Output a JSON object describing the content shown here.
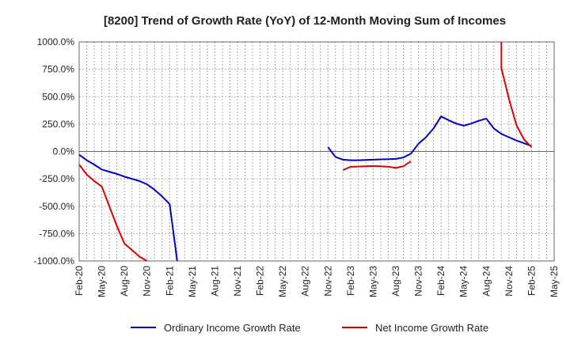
{
  "chart_data": {
    "type": "line",
    "title": "[8200]  Trend of Growth Rate (YoY) of 12-Month Moving Sum of Incomes",
    "xlabel": "",
    "ylabel": "",
    "ylim": [
      -1000,
      1000
    ],
    "yticks": [
      -1000,
      -750,
      -500,
      -250,
      0,
      250,
      500,
      750,
      1000
    ],
    "ytick_labels": [
      "-1000.0%",
      "-750.0%",
      "-500.0%",
      "-250.0%",
      "0.0%",
      "250.0%",
      "500.0%",
      "750.0%",
      "1000.0%"
    ],
    "xticks": [
      "Feb-20",
      "May-20",
      "Aug-20",
      "Nov-20",
      "Feb-21",
      "May-21",
      "Aug-21",
      "Nov-21",
      "Feb-22",
      "May-22",
      "Aug-22",
      "Nov-22",
      "Feb-23",
      "May-23",
      "Aug-23",
      "Nov-23",
      "Feb-24",
      "May-24",
      "Aug-24",
      "Nov-24",
      "Feb-25",
      "May-25"
    ],
    "grid": true,
    "legend_position": "bottom",
    "series": [
      {
        "name": "Ordinary Income Growth Rate",
        "color": "#0000cc",
        "points": [
          [
            "Feb-20",
            -30
          ],
          [
            "Mar-20",
            -80
          ],
          [
            "Apr-20",
            -120
          ],
          [
            "May-20",
            -165
          ],
          [
            "Jun-20",
            -185
          ],
          [
            "Jul-20",
            -205
          ],
          [
            "Aug-20",
            -230
          ],
          [
            "Sep-20",
            -250
          ],
          [
            "Oct-20",
            -270
          ],
          [
            "Nov-20",
            -300
          ],
          [
            "Dec-20",
            -350
          ],
          [
            "Jan-21",
            -410
          ],
          [
            "Feb-21",
            -480
          ],
          [
            "Mar-21",
            -1000
          ]
        ]
      },
      {
        "name": "Ordinary Income Growth Rate",
        "color": "#0000cc",
        "points": [
          [
            "Nov-22",
            40
          ],
          [
            "Dec-22",
            -50
          ],
          [
            "Jan-23",
            -75
          ],
          [
            "Feb-23",
            -80
          ],
          [
            "Mar-23",
            -80
          ],
          [
            "Apr-23",
            -78
          ],
          [
            "May-23",
            -75
          ],
          [
            "Jun-23",
            -72
          ],
          [
            "Jul-23",
            -70
          ],
          [
            "Aug-23",
            -68
          ],
          [
            "Sep-23",
            -55
          ],
          [
            "Oct-23",
            -20
          ],
          [
            "Nov-23",
            70
          ],
          [
            "Dec-23",
            130
          ],
          [
            "Jan-24",
            210
          ],
          [
            "Feb-24",
            320
          ],
          [
            "Mar-24",
            285
          ],
          [
            "Apr-24",
            255
          ],
          [
            "May-24",
            235
          ],
          [
            "Jun-24",
            255
          ],
          [
            "Jul-24",
            280
          ],
          [
            "Aug-24",
            300
          ],
          [
            "Sep-24",
            210
          ],
          [
            "Oct-24",
            160
          ],
          [
            "Nov-24",
            130
          ],
          [
            "Dec-24",
            100
          ],
          [
            "Jan-25",
            75
          ],
          [
            "Feb-25",
            50
          ]
        ]
      },
      {
        "name": "Net Income Growth Rate",
        "color": "#dd0000",
        "points": [
          [
            "Feb-20",
            -120
          ],
          [
            "Mar-20",
            -210
          ],
          [
            "Apr-20",
            -270
          ],
          [
            "May-20",
            -320
          ],
          [
            "Jun-20",
            -500
          ],
          [
            "Jul-20",
            -680
          ],
          [
            "Aug-20",
            -840
          ],
          [
            "Sep-20",
            -900
          ],
          [
            "Oct-20",
            -960
          ],
          [
            "Nov-20",
            -1000
          ]
        ]
      },
      {
        "name": "Net Income Growth Rate",
        "color": "#dd0000",
        "points": [
          [
            "Jan-23",
            -170
          ],
          [
            "Feb-23",
            -140
          ],
          [
            "Mar-23",
            -138
          ],
          [
            "Apr-23",
            -135
          ],
          [
            "May-23",
            -133
          ],
          [
            "Jun-23",
            -135
          ],
          [
            "Jul-23",
            -140
          ],
          [
            "Aug-23",
            -150
          ],
          [
            "Sep-23",
            -135
          ],
          [
            "Oct-23",
            -90
          ]
        ]
      },
      {
        "name": "Net Income Growth Rate",
        "color": "#dd0000",
        "points": [
          [
            "Oct-24",
            1000
          ],
          [
            "Oct-24",
            760
          ],
          [
            "Nov-24",
            480
          ],
          [
            "Dec-24",
            240
          ],
          [
            "Jan-25",
            110
          ],
          [
            "Feb-25",
            40
          ]
        ]
      }
    ],
    "legend": [
      {
        "name": "Ordinary Income Growth Rate",
        "color": "#0000cc"
      },
      {
        "name": "Net Income Growth Rate",
        "color": "#dd0000"
      }
    ]
  }
}
